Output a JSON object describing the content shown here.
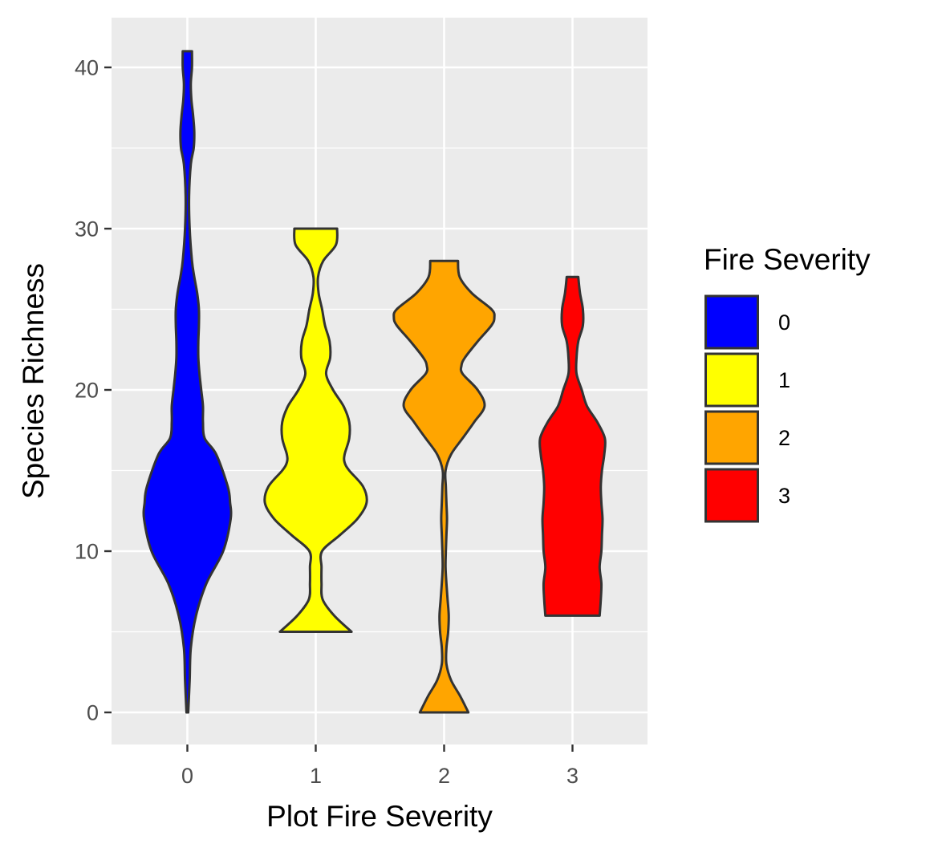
{
  "chart_data": {
    "type": "violin",
    "xlabel": "Plot Fire Severity",
    "ylabel": "Species Richness",
    "categories": [
      "0",
      "1",
      "2",
      "3"
    ],
    "ylim": [
      -2.1,
      43.3
    ],
    "y_ticks": [
      0,
      10,
      20,
      30,
      40
    ],
    "grid": true,
    "legend": {
      "title": "Fire Severity",
      "placement": "right",
      "entries": [
        "0",
        "1",
        "2",
        "3"
      ]
    },
    "colors": {
      "0": "#0000ff",
      "1": "#ffff00",
      "2": "#ffa500",
      "3": "#ff0000",
      "outline": "#333333",
      "panel": "#ebebeb",
      "grid": "#ffffff"
    },
    "series": [
      {
        "name": "0",
        "min": 0,
        "max": 41,
        "density": [
          [
            0,
            0.015
          ],
          [
            2,
            0.04
          ],
          [
            4,
            0.06
          ],
          [
            6,
            0.15
          ],
          [
            8,
            0.33
          ],
          [
            10,
            0.62
          ],
          [
            12,
            0.75
          ],
          [
            13,
            0.74
          ],
          [
            14,
            0.7
          ],
          [
            16,
            0.5
          ],
          [
            17,
            0.3
          ],
          [
            18,
            0.27
          ],
          [
            19,
            0.27
          ],
          [
            20,
            0.24
          ],
          [
            21,
            0.21
          ],
          [
            22,
            0.19
          ],
          [
            23,
            0.19
          ],
          [
            24,
            0.2
          ],
          [
            25,
            0.2
          ],
          [
            26,
            0.17
          ],
          [
            27,
            0.12
          ],
          [
            28,
            0.08
          ],
          [
            30,
            0.04
          ],
          [
            32,
            0.03
          ],
          [
            34,
            0.06
          ],
          [
            35,
            0.11
          ],
          [
            36,
            0.12
          ],
          [
            37,
            0.1
          ],
          [
            38,
            0.07
          ],
          [
            39,
            0.06
          ],
          [
            40,
            0.08
          ],
          [
            41,
            0.08
          ]
        ]
      },
      {
        "name": "1",
        "min": 5,
        "max": 30,
        "density": [
          [
            5,
            0.62
          ],
          [
            6,
            0.32
          ],
          [
            7,
            0.12
          ],
          [
            8,
            0.1
          ],
          [
            9,
            0.1
          ],
          [
            10,
            0.11
          ],
          [
            11,
            0.42
          ],
          [
            12,
            0.72
          ],
          [
            13,
            0.88
          ],
          [
            14,
            0.82
          ],
          [
            15,
            0.58
          ],
          [
            15.5,
            0.5
          ],
          [
            16,
            0.5
          ],
          [
            17,
            0.58
          ],
          [
            18,
            0.58
          ],
          [
            19,
            0.48
          ],
          [
            20,
            0.3
          ],
          [
            21,
            0.18
          ],
          [
            22,
            0.25
          ],
          [
            23,
            0.24
          ],
          [
            24,
            0.16
          ],
          [
            25,
            0.11
          ],
          [
            26,
            0.05
          ],
          [
            27,
            0.04
          ],
          [
            28,
            0.13
          ],
          [
            29,
            0.35
          ],
          [
            30,
            0.37
          ]
        ]
      },
      {
        "name": "2",
        "min": 0,
        "max": 28,
        "density": [
          [
            0,
            0.42
          ],
          [
            1,
            0.28
          ],
          [
            2,
            0.12
          ],
          [
            3,
            0.04
          ],
          [
            4,
            0.04
          ],
          [
            5,
            0.07
          ],
          [
            6,
            0.08
          ],
          [
            7,
            0.06
          ],
          [
            8,
            0.04
          ],
          [
            9,
            0.025
          ],
          [
            10,
            0.03
          ],
          [
            11,
            0.04
          ],
          [
            12,
            0.05
          ],
          [
            13,
            0.04
          ],
          [
            14,
            0.03
          ],
          [
            15,
            0.025
          ],
          [
            16,
            0.12
          ],
          [
            17,
            0.32
          ],
          [
            18,
            0.52
          ],
          [
            19,
            0.7
          ],
          [
            20,
            0.58
          ],
          [
            21,
            0.32
          ],
          [
            21.5,
            0.3
          ],
          [
            22,
            0.36
          ],
          [
            23,
            0.58
          ],
          [
            24,
            0.82
          ],
          [
            24.5,
            0.87
          ],
          [
            25,
            0.82
          ],
          [
            26,
            0.48
          ],
          [
            27,
            0.27
          ],
          [
            28,
            0.24
          ]
        ]
      },
      {
        "name": "3",
        "min": 6,
        "max": 27,
        "density": [
          [
            6,
            0.47
          ],
          [
            7,
            0.49
          ],
          [
            8,
            0.5
          ],
          [
            9,
            0.47
          ],
          [
            10,
            0.5
          ],
          [
            11,
            0.51
          ],
          [
            12,
            0.52
          ],
          [
            13,
            0.5
          ],
          [
            14,
            0.49
          ],
          [
            15,
            0.51
          ],
          [
            16,
            0.55
          ],
          [
            17,
            0.56
          ],
          [
            18,
            0.43
          ],
          [
            19,
            0.25
          ],
          [
            20,
            0.16
          ],
          [
            21,
            0.07
          ],
          [
            22,
            0.07
          ],
          [
            23,
            0.1
          ],
          [
            24,
            0.18
          ],
          [
            25,
            0.18
          ],
          [
            26,
            0.13
          ],
          [
            27,
            0.1
          ]
        ]
      }
    ]
  }
}
